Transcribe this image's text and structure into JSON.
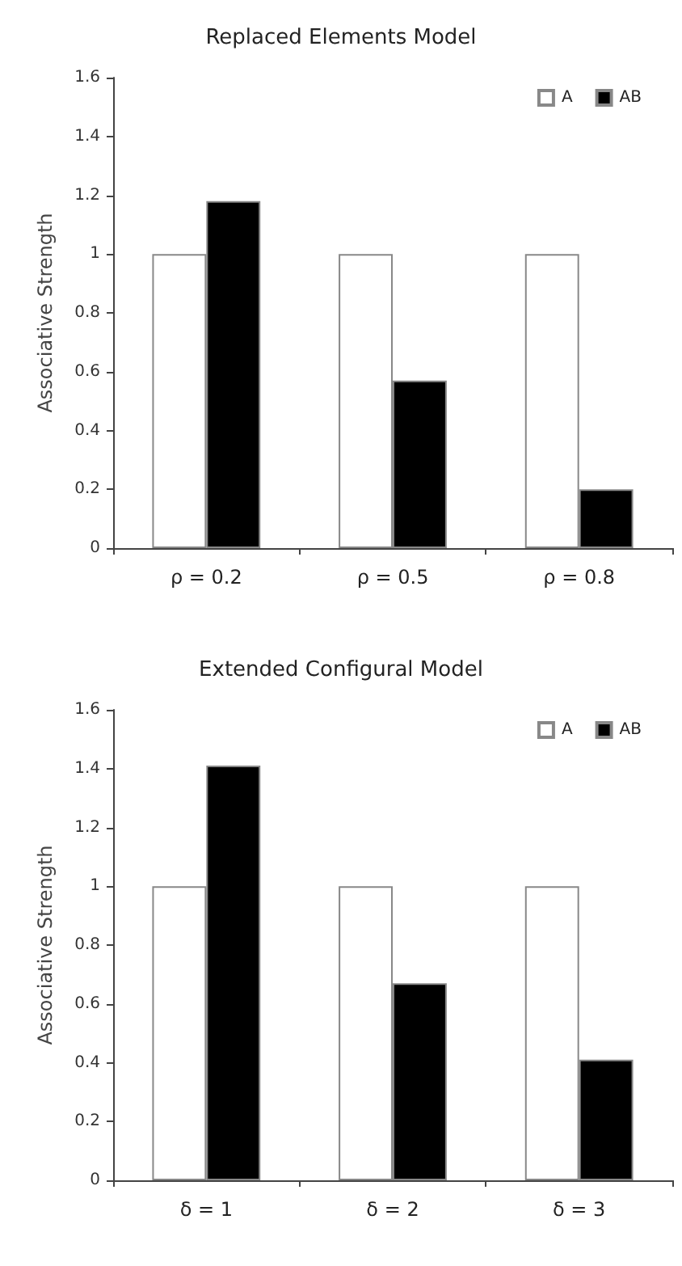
{
  "chart_data": [
    {
      "type": "bar",
      "title": "Replaced Elements Model",
      "ylabel": "Associative Strength",
      "categories": [
        "ρ = 0.2",
        "ρ = 0.5",
        "ρ = 0.8"
      ],
      "series": [
        {
          "name": "A",
          "color": "#ffffff",
          "values": [
            1,
            1,
            1
          ]
        },
        {
          "name": "AB",
          "color": "#000000",
          "values": [
            1.18,
            0.57,
            0.2
          ]
        }
      ],
      "ylim": [
        0,
        1.6
      ],
      "yticks": [
        0,
        0.2,
        0.4,
        0.6,
        0.8,
        1,
        1.2,
        1.4,
        1.6
      ],
      "grid": false,
      "legend": "top right"
    },
    {
      "type": "bar",
      "title": "Extended Configural Model",
      "ylabel": "Associative Strength",
      "categories": [
        "δ = 1",
        "δ = 2",
        "δ = 3"
      ],
      "series": [
        {
          "name": "A",
          "color": "#ffffff",
          "values": [
            1,
            1,
            1
          ]
        },
        {
          "name": "AB",
          "color": "#000000",
          "values": [
            1.41,
            0.67,
            0.41
          ]
        }
      ],
      "ylim": [
        0,
        1.6
      ],
      "yticks": [
        0,
        0.2,
        0.4,
        0.6,
        0.8,
        1,
        1.2,
        1.4,
        1.6
      ],
      "grid": false,
      "legend": "top right"
    }
  ]
}
